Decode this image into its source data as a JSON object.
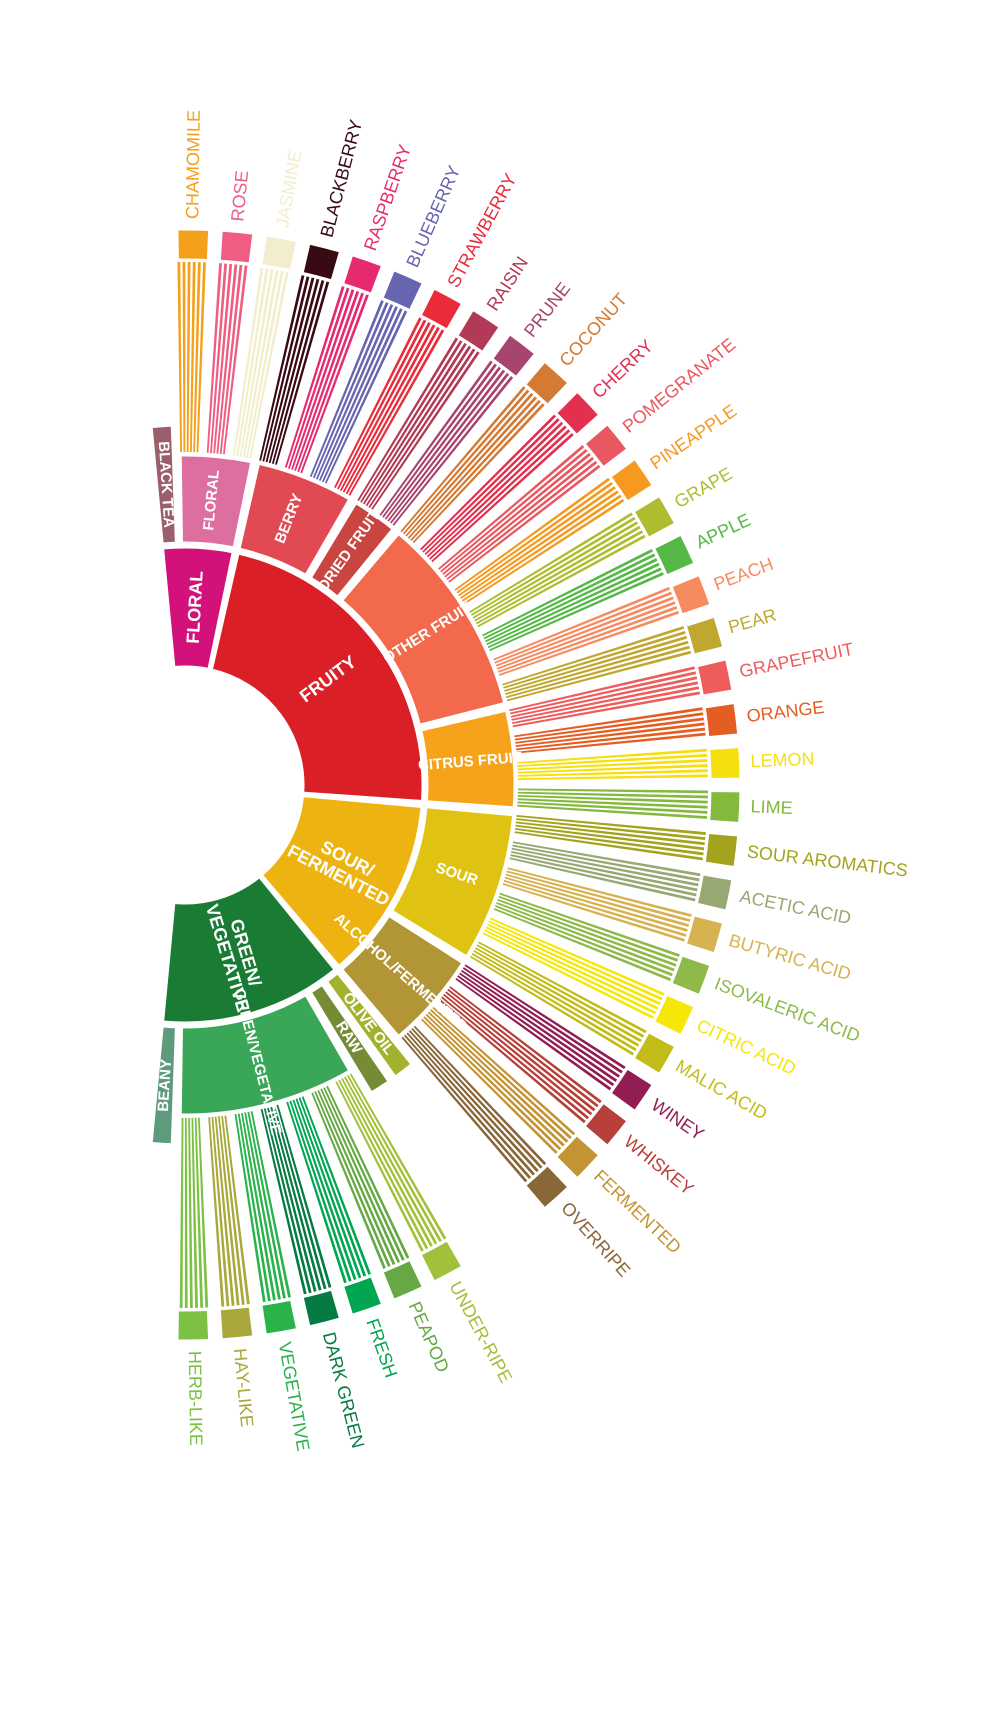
{
  "title": "",
  "categories": [
    {
      "name": "FLORAL",
      "color": "#d2127a",
      "subcategories": [
        {
          "name": "BLACK TEA",
          "color": "#9a5f6b",
          "leaf": true
        },
        {
          "name": "FLORAL",
          "color": "#dd6fa0",
          "flavors": [
            {
              "name": "CHAMOMILE",
              "color": "#f5a01a"
            },
            {
              "name": "ROSE",
              "color": "#ef5d82"
            },
            {
              "name": "JASMINE",
              "color": "#f2eecb"
            }
          ]
        }
      ]
    },
    {
      "name": "FRUITY",
      "color": "#da1f26",
      "subcategories": [
        {
          "name": "BERRY",
          "color": "#e14a53",
          "flavors": [
            {
              "name": "BLACKBERRY",
              "color": "#3a0a14"
            },
            {
              "name": "RASPBERRY",
              "color": "#e62a6f"
            },
            {
              "name": "BLUEBERRY",
              "color": "#6764b0"
            },
            {
              "name": "STRAWBERRY",
              "color": "#ea2b3a"
            }
          ]
        },
        {
          "name": "DRIED FRUIT",
          "color": "#c9453f",
          "flavors": [
            {
              "name": "RAISIN",
              "color": "#b23a56"
            },
            {
              "name": "PRUNE",
              "color": "#a7446f"
            }
          ]
        },
        {
          "name": "OTHER FRUIT",
          "color": "#f26a4b",
          "flavors": [
            {
              "name": "COCONUT",
              "color": "#d47a33"
            },
            {
              "name": "CHERRY",
              "color": "#e3304f"
            },
            {
              "name": "POMEGRANATE",
              "color": "#e95860"
            },
            {
              "name": "PINEAPPLE",
              "color": "#f59a1f"
            },
            {
              "name": "GRAPE",
              "color": "#aebd30"
            },
            {
              "name": "APPLE",
              "color": "#55b847"
            },
            {
              "name": "PEACH",
              "color": "#f78b60"
            },
            {
              "name": "PEAR",
              "color": "#c0a830"
            }
          ]
        },
        {
          "name": "CITRUS FRUIT",
          "color": "#f7a21b",
          "flavors": [
            {
              "name": "GRAPEFRUIT",
              "color": "#ee5c5c"
            },
            {
              "name": "ORANGE",
              "color": "#e45e24"
            },
            {
              "name": "LEMON",
              "color": "#f6df0e"
            },
            {
              "name": "LIME",
              "color": "#84b93d"
            }
          ]
        }
      ]
    },
    {
      "name": "SOUR/ FERMENTED",
      "color": "#edb411",
      "subcategories": [
        {
          "name": "SOUR",
          "color": "#e0c312",
          "flavors": [
            {
              "name": "SOUR AROMATICS",
              "color": "#a3a31d"
            },
            {
              "name": "ACETIC ACID",
              "color": "#98a873"
            },
            {
              "name": "BUTYRIC ACID",
              "color": "#d6b350"
            },
            {
              "name": "ISOVALERIC ACID",
              "color": "#8dba48"
            },
            {
              "name": "CITRIC ACID",
              "color": "#f5e808"
            },
            {
              "name": "MALIC ACID",
              "color": "#c2bc19"
            }
          ]
        },
        {
          "name": "ALCOHOL/FERMENTED",
          "color": "#b29635",
          "flavors": [
            {
              "name": "WINEY",
              "color": "#921d52"
            },
            {
              "name": "WHISKEY",
              "color": "#b8403b"
            },
            {
              "name": "FERMENTED",
              "color": "#c49434"
            },
            {
              "name": "OVERRIPE",
              "color": "#8a6739"
            }
          ]
        }
      ]
    },
    {
      "name": "GREEN/ VEGETATIVE",
      "color": "#197b34",
      "subcategories": [
        {
          "name": "OLIVE OIL",
          "color": "#a2b22d",
          "leaf": true
        },
        {
          "name": "RAW",
          "color": "#758c34",
          "leaf": true
        },
        {
          "name": "GREEN/VEGETATIVE",
          "color": "#3aa657",
          "flavors": [
            {
              "name": "UNDER-RIPE",
              "color": "#a3c03b"
            },
            {
              "name": "PEAPOD",
              "color": "#66a944"
            },
            {
              "name": "FRESH",
              "color": "#00a651"
            },
            {
              "name": "DARK GREEN",
              "color": "#057a43"
            },
            {
              "name": "VEGETATIVE",
              "color": "#2ab24b"
            },
            {
              "name": "HAY-LIKE",
              "color": "#a9a83b"
            },
            {
              "name": "HERB-LIKE",
              "color": "#7cc144"
            }
          ]
        },
        {
          "name": "BEANY",
          "color": "#5e9a7c",
          "leaf": true
        }
      ]
    }
  ]
}
